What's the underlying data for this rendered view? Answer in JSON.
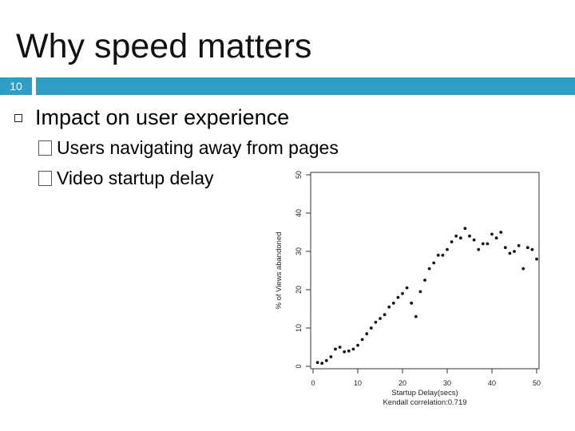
{
  "slide": {
    "title": "Why speed matters",
    "number": "10",
    "bullet": "Impact on user experience",
    "sub_bullets": [
      "Users navigating away from pages",
      "Video startup delay"
    ]
  },
  "colors": {
    "accent_bar": "#2e9ec6"
  },
  "chart_data": {
    "type": "scatter",
    "xlabel": "Startup Delay(secs)",
    "ylabel": "% of Views abandoned",
    "caption": "Kendall correlation:0.719",
    "xlim": [
      0,
      50
    ],
    "ylim": [
      0,
      50
    ],
    "xticks": [
      "0",
      "10",
      "20",
      "30",
      "40",
      "50"
    ],
    "yticks": [
      "0",
      "10",
      "20",
      "30",
      "40",
      "50"
    ],
    "points": [
      [
        1,
        1
      ],
      [
        2,
        0.8
      ],
      [
        3,
        1.5
      ],
      [
        4,
        2.5
      ],
      [
        5,
        4.5
      ],
      [
        6,
        5
      ],
      [
        7,
        3.8
      ],
      [
        8,
        4
      ],
      [
        9,
        4.5
      ],
      [
        10,
        5.5
      ],
      [
        11,
        7
      ],
      [
        12,
        8.5
      ],
      [
        13,
        10
      ],
      [
        14,
        11.5
      ],
      [
        15,
        12.5
      ],
      [
        16,
        13.5
      ],
      [
        17,
        15.5
      ],
      [
        18,
        16.5
      ],
      [
        19,
        18
      ],
      [
        20,
        19
      ],
      [
        21,
        20.5
      ],
      [
        22,
        16.5
      ],
      [
        23,
        13
      ],
      [
        24,
        19.5
      ],
      [
        25,
        22.5
      ],
      [
        26,
        25.5
      ],
      [
        27,
        27
      ],
      [
        28,
        29
      ],
      [
        29,
        29
      ],
      [
        30,
        30.5
      ],
      [
        31,
        32.5
      ],
      [
        32,
        34
      ],
      [
        33,
        33.5
      ],
      [
        34,
        36
      ],
      [
        35,
        34
      ],
      [
        36,
        33
      ],
      [
        37,
        30.5
      ],
      [
        38,
        32
      ],
      [
        39,
        32
      ],
      [
        40,
        34.5
      ],
      [
        41,
        33.5
      ],
      [
        42,
        35
      ],
      [
        43,
        31
      ],
      [
        44,
        29.5
      ],
      [
        45,
        30
      ],
      [
        46,
        31.5
      ],
      [
        47,
        25.5
      ],
      [
        48,
        31
      ],
      [
        49,
        30.5
      ],
      [
        50,
        28
      ]
    ]
  }
}
